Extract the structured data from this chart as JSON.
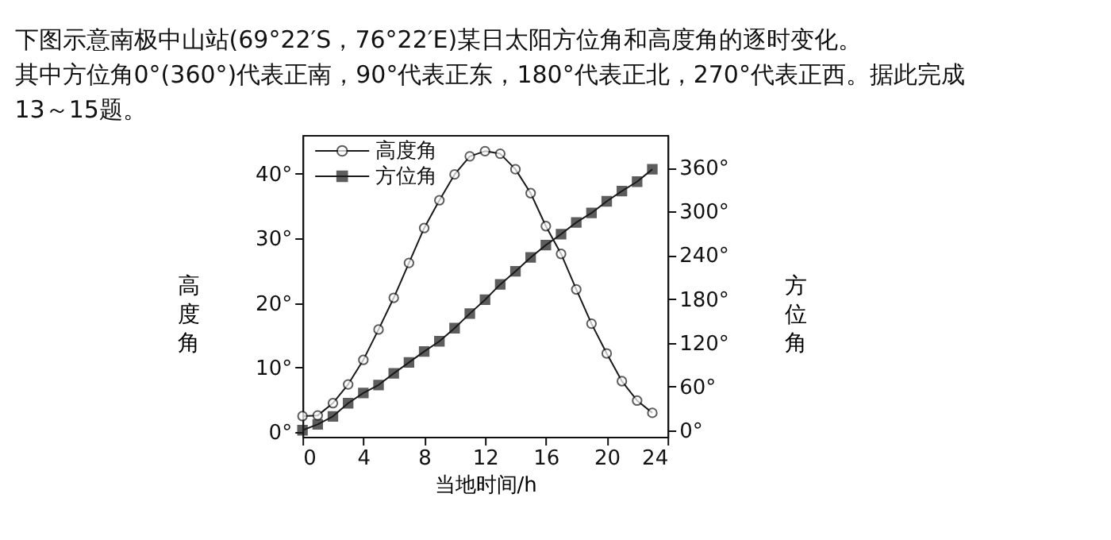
{
  "chart_data": {
    "type": "line",
    "annotations": [
      "下图示意南极中山站(69°22′S，76°22′E)某日太阳方位角和高度角的逐时变化。",
      "其中方位角0°(360°)代表正南，90°代表正东，180°代表正北，270°代表正西。据此完成",
      "13～15题。"
    ],
    "xlabel": "当地时间/h",
    "ylabel": "高度角",
    "y2label": "方位角",
    "x": [
      0,
      1,
      2,
      3,
      4,
      5,
      6,
      7,
      8,
      9,
      10,
      11,
      12,
      13,
      14,
      15,
      16,
      17,
      18,
      19,
      20,
      21,
      22,
      23
    ],
    "series": [
      {
        "name": "高度角",
        "color": "#1a1a1a",
        "marker": "circle",
        "values": [
          2.5,
          2.6,
          4.5,
          7.4,
          11.2,
          15.9,
          20.8,
          26.2,
          31.6,
          35.9,
          39.9,
          42.7,
          43.5,
          43.1,
          40.7,
          37.0,
          31.9,
          27.6,
          22.1,
          16.8,
          12.2,
          7.9,
          4.9,
          3.0
        ]
      },
      {
        "name": "方位角",
        "color": "#1a1a1a",
        "marker": "square",
        "axis": "y2",
        "values": [
          0,
          8,
          19,
          37,
          51,
          62,
          78,
          93,
          108,
          122,
          140,
          160,
          179,
          200,
          218,
          237,
          254,
          269,
          285,
          298,
          314,
          328,
          341,
          358
        ]
      }
    ],
    "xlim": [
      0,
      24
    ],
    "xticks": [
      0,
      4,
      8,
      12,
      16,
      20,
      24
    ],
    "ylim": [
      -0.7,
      46
    ],
    "yticks": [
      {
        "value": 0,
        "label": "0°"
      },
      {
        "value": 10,
        "label": "10°"
      },
      {
        "value": 20,
        "label": "20°"
      },
      {
        "value": 30,
        "label": "30°"
      },
      {
        "value": 40,
        "label": "40°"
      }
    ],
    "y2lim": [
      -9,
      405
    ],
    "y2ticks": [
      {
        "value": 0,
        "label": "0°"
      },
      {
        "value": 60,
        "label": "60°"
      },
      {
        "value": 120,
        "label": "120°"
      },
      {
        "value": 180,
        "label": "180°"
      },
      {
        "value": 240,
        "label": "240°"
      },
      {
        "value": 300,
        "label": "300°"
      },
      {
        "value": 360,
        "label": "360°"
      }
    ],
    "grid": false,
    "legend": "top left"
  }
}
